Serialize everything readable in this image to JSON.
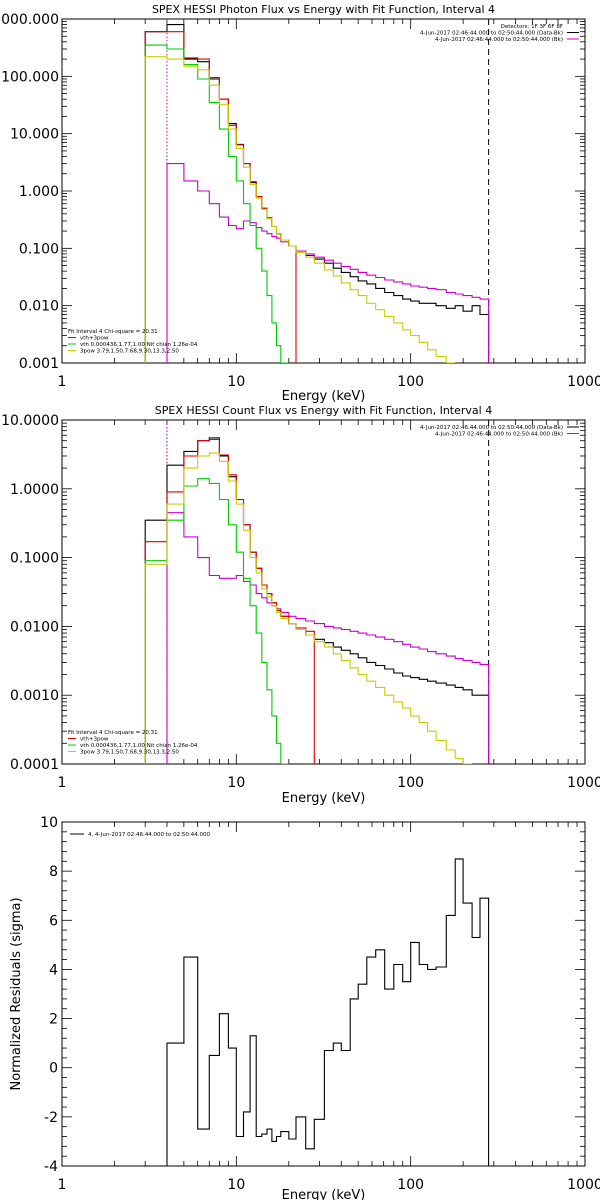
{
  "chart_data": [
    {
      "id": "photon",
      "type": "line",
      "step": true,
      "title": "SPEX HESSI Photon Flux vs Energy with Fit Function, Interval 4",
      "xlabel": "Energy (keV)",
      "ylabel": "",
      "xscale": "log",
      "yscale": "log",
      "xlim": [
        1,
        1000
      ],
      "ylim": [
        0.001,
        1000
      ],
      "x_ticks": [
        "1",
        "10",
        "100",
        "1000"
      ],
      "y_ticks": [
        "0.001",
        "0.010",
        "0.100",
        "1.000",
        "10.000",
        "100.000",
        "1000.000"
      ],
      "legend_top": [
        {
          "text": "Detectors: 1F 3F 6F 8F",
          "color": "#000000"
        },
        {
          "text": "4-Jun-2017 02:46:44.000 to 02:50:44.000 (Data-Bk)",
          "color": "#000000"
        },
        {
          "text": "4-Jun-2017 02:46:44.000 to 02:50:44.000 (Bk)",
          "color": "#cc00cc"
        }
      ],
      "legend_bottom": [
        {
          "text": "Fit Interval  4    Chi-square = 20.31",
          "color": "#000000"
        },
        {
          "text": "vth+3pow",
          "color": "#dd0000"
        },
        {
          "text": "vth 0.000436,1.77,1.00   Nit chian 1.26e-04",
          "color": "#00cc00"
        },
        {
          "text": "3pow 3.79,1.50,7.68,9.30,13.3,2.50",
          "color": "#cccc00"
        }
      ],
      "edges": [
        3,
        4,
        5,
        6,
        7,
        8,
        9,
        10,
        11,
        12,
        13,
        14,
        15,
        16,
        17,
        18,
        20,
        22,
        25,
        28,
        32,
        36,
        40,
        45,
        50,
        56,
        63,
        71,
        80,
        90,
        100,
        112,
        125,
        140,
        160,
        180,
        200,
        225,
        250,
        280
      ],
      "vlines": [
        {
          "x": 4,
          "style": "dotted",
          "color": "#cc00cc"
        },
        {
          "x": 280,
          "style": "dashed",
          "color": "#000000"
        }
      ],
      "series": [
        {
          "name": "Data-Bk",
          "color": "#000000",
          "values": [
            600,
            800,
            200,
            180,
            90,
            40,
            15,
            6.5,
            3,
            1.4,
            0.8,
            0.5,
            0.34,
            0.24,
            0.18,
            0.14,
            0.11,
            0.09,
            0.075,
            0.065,
            0.055,
            0.045,
            0.038,
            0.032,
            0.027,
            0.024,
            0.02,
            0.017,
            0.015,
            0.013,
            0.012,
            0.011,
            0.011,
            0.01,
            0.009,
            0.01,
            0.008,
            0.01,
            0.007
          ]
        },
        {
          "name": "Bk",
          "color": "#cc00cc",
          "values": [
            null,
            3,
            1.5,
            1,
            0.6,
            0.35,
            0.25,
            0.22,
            0.3,
            0.28,
            0.23,
            0.2,
            0.18,
            0.16,
            0.15,
            0.13,
            0.11,
            0.09,
            0.08,
            0.07,
            0.062,
            0.055,
            0.048,
            0.043,
            0.038,
            0.034,
            0.031,
            0.028,
            0.026,
            0.024,
            0.022,
            0.021,
            0.02,
            0.019,
            0.017,
            0.016,
            0.015,
            0.014,
            0.013
          ]
        },
        {
          "name": "vth+3pow",
          "color": "#dd0000",
          "values": [
            600,
            600,
            210,
            200,
            95,
            40,
            14,
            6.4,
            3,
            1.45,
            0.8,
            0.5,
            0.33,
            0.24,
            0.18,
            0.14,
            0.11,
            null,
            null,
            null,
            null,
            null,
            null,
            null,
            null,
            null,
            null,
            null,
            null,
            null,
            null,
            null,
            null,
            null,
            null,
            null,
            null,
            null,
            null
          ]
        },
        {
          "name": "vth",
          "color": "#00cc00",
          "values": [
            350,
            300,
            160,
            90,
            35,
            12,
            4,
            1.5,
            0.6,
            0.25,
            0.1,
            0.04,
            0.015,
            0.005,
            0.002,
            0.001,
            null,
            null,
            null,
            null,
            null,
            null,
            null,
            null,
            null,
            null,
            null,
            null,
            null,
            null,
            null,
            null,
            null,
            null,
            null,
            null,
            null,
            null,
            null
          ]
        },
        {
          "name": "3pow",
          "color": "#cccc00",
          "values": [
            220,
            200,
            150,
            130,
            70,
            32,
            12,
            5.5,
            2.6,
            1.3,
            0.75,
            0.48,
            0.33,
            0.24,
            0.18,
            0.14,
            0.11,
            0.085,
            0.07,
            0.055,
            0.042,
            0.033,
            0.025,
            0.019,
            0.015,
            0.011,
            0.0085,
            0.0065,
            0.005,
            0.0038,
            0.003,
            0.0023,
            0.0017,
            0.0013,
            0.001,
            null,
            null,
            null,
            null
          ]
        }
      ]
    },
    {
      "id": "count",
      "type": "line",
      "step": true,
      "title": "SPEX HESSI Count Flux vs Energy with Fit Function, Interval 4",
      "xlabel": "Energy (keV)",
      "ylabel": "",
      "xscale": "log",
      "yscale": "log",
      "xlim": [
        1,
        1000
      ],
      "ylim": [
        0.0001,
        10
      ],
      "x_ticks": [
        "1",
        "10",
        "100",
        "1000"
      ],
      "y_ticks": [
        "0.0001",
        "0.0010",
        "0.0100",
        "0.1000",
        "1.0000",
        "10.0000"
      ],
      "legend_top": [
        {
          "text": "4-Jun-2017 02:46:44.000 to 02:50:44.000 (Data-Bk)",
          "color": "#000000"
        },
        {
          "text": "4-Jun-2017 02:46:44.000 to 02:50:44.000 (Bk)",
          "color": "#cc00cc"
        }
      ],
      "legend_bottom": [
        {
          "text": "Fit Interval  4    Chi-square = 20.31",
          "color": "#000000"
        },
        {
          "text": "vth+3pow",
          "color": "#dd0000"
        },
        {
          "text": "vth 0.000436,1.77,1.00   Nit chian 1.26e-04",
          "color": "#00cc00"
        },
        {
          "text": "3pow 3.79,1.50,7.68,9.30,13.3,2.50",
          "color": "#cccc00"
        }
      ],
      "edges": [
        3,
        4,
        5,
        6,
        7,
        8,
        9,
        10,
        11,
        12,
        13,
        14,
        15,
        16,
        17,
        18,
        20,
        22,
        25,
        28,
        32,
        36,
        40,
        45,
        50,
        56,
        63,
        71,
        80,
        90,
        100,
        112,
        125,
        140,
        160,
        180,
        200,
        225,
        250,
        280
      ],
      "vlines": [
        {
          "x": 4,
          "style": "dotted",
          "color": "#000000"
        },
        {
          "x": 4,
          "style": "dotted",
          "color": "#cc00cc"
        },
        {
          "x": 280,
          "style": "dashed",
          "color": "#000000"
        }
      ],
      "series": [
        {
          "name": "Data-Bk",
          "color": "#000000",
          "values": [
            0.35,
            2.2,
            3.5,
            5,
            5.5,
            3,
            1.5,
            0.7,
            0.3,
            0.12,
            0.07,
            0.04,
            0.03,
            0.022,
            0.017,
            0.014,
            0.011,
            0.009,
            0.0075,
            0.0065,
            0.0058,
            0.005,
            0.0045,
            0.004,
            0.0035,
            0.003,
            0.0027,
            0.0024,
            0.0021,
            0.0019,
            0.0018,
            0.0017,
            0.0016,
            0.0015,
            0.0014,
            0.0013,
            0.0012,
            0.001,
            0.001
          ]
        },
        {
          "name": "Bk",
          "color": "#cc00cc",
          "values": [
            null,
            0.45,
            0.2,
            0.1,
            0.055,
            0.05,
            0.05,
            0.055,
            0.045,
            0.04,
            0.03,
            0.026,
            0.022,
            0.02,
            0.018,
            0.016,
            0.014,
            0.013,
            0.012,
            0.011,
            0.01,
            0.0095,
            0.009,
            0.0085,
            0.008,
            0.0075,
            0.007,
            0.0065,
            0.006,
            0.0055,
            0.005,
            0.0047,
            0.0043,
            0.004,
            0.0037,
            0.0034,
            0.0032,
            0.003,
            0.0028
          ]
        },
        {
          "name": "vth+3pow",
          "color": "#dd0000",
          "values": [
            0.17,
            0.9,
            3,
            5,
            5.2,
            3.1,
            1.6,
            0.7,
            0.3,
            0.12,
            0.07,
            0.04,
            0.03,
            0.022,
            0.017,
            0.014,
            0.011,
            0.0095,
            0.0085,
            null,
            null,
            null,
            null,
            null,
            null,
            null,
            null,
            null,
            null,
            null,
            null,
            null,
            null,
            null,
            null,
            null,
            null,
            null,
            null
          ]
        },
        {
          "name": "vth",
          "color": "#00cc00",
          "values": [
            0.09,
            0.35,
            1.1,
            1.4,
            1.2,
            0.7,
            0.3,
            0.12,
            0.05,
            0.02,
            0.008,
            0.003,
            0.0012,
            0.0005,
            0.0002,
            0.0001,
            null,
            null,
            null,
            null,
            null,
            null,
            null,
            null,
            null,
            null,
            null,
            null,
            null,
            null,
            null,
            null,
            null,
            null,
            null,
            null,
            null,
            null,
            null
          ]
        },
        {
          "name": "3pow",
          "color": "#cccc00",
          "values": [
            0.08,
            0.6,
            2,
            3,
            3.3,
            2.5,
            1.3,
            0.6,
            0.25,
            0.1,
            0.06,
            0.035,
            0.027,
            0.02,
            0.016,
            0.013,
            0.011,
            0.009,
            0.0075,
            0.006,
            0.005,
            0.004,
            0.0032,
            0.0025,
            0.002,
            0.0016,
            0.0013,
            0.001,
            0.0008,
            0.00065,
            0.0005,
            0.0004,
            0.0003,
            0.00022,
            0.00016,
            0.00012,
            0.0001,
            null,
            null
          ]
        }
      ]
    },
    {
      "id": "residuals",
      "type": "line",
      "step": true,
      "title": "",
      "xlabel": "Energy (keV)",
      "ylabel": "Normalized Residuals (sigma)",
      "xscale": "log",
      "yscale": "linear",
      "xlim": [
        1,
        1000
      ],
      "ylim": [
        -4,
        10
      ],
      "x_ticks": [
        "1",
        "10",
        "100",
        "1000"
      ],
      "y_ticks": [
        "-4",
        "-2",
        "0",
        "2",
        "4",
        "6",
        "8",
        "10"
      ],
      "legend_top_left": [
        {
          "text": "4,  4-Jun-2017 02:46:44.000 to 02:50:44.000",
          "color": "#000000"
        }
      ],
      "edges": [
        4,
        5,
        6,
        7,
        8,
        9,
        10,
        11,
        12,
        13,
        14,
        15,
        16,
        17,
        18,
        20,
        22,
        25,
        28,
        32,
        36,
        40,
        45,
        50,
        56,
        63,
        71,
        80,
        90,
        100,
        112,
        125,
        140,
        160,
        180,
        200,
        225,
        250,
        280
      ],
      "vlines": [],
      "series": [
        {
          "name": "Residuals",
          "color": "#000000",
          "values": [
            1,
            4.5,
            -2.5,
            0.5,
            2.2,
            0.8,
            -2.8,
            -1.8,
            1.3,
            -2.8,
            -2.7,
            -2.5,
            -3,
            -2.8,
            -2.6,
            -2.9,
            -2,
            -3.3,
            -2.1,
            0.7,
            1,
            0.7,
            2.8,
            3.4,
            4.5,
            4.8,
            3.2,
            4.2,
            3.5,
            5.1,
            4.2,
            4,
            4.1,
            6.2,
            8.5,
            6.7,
            5.3,
            6.9
          ]
        }
      ]
    }
  ]
}
